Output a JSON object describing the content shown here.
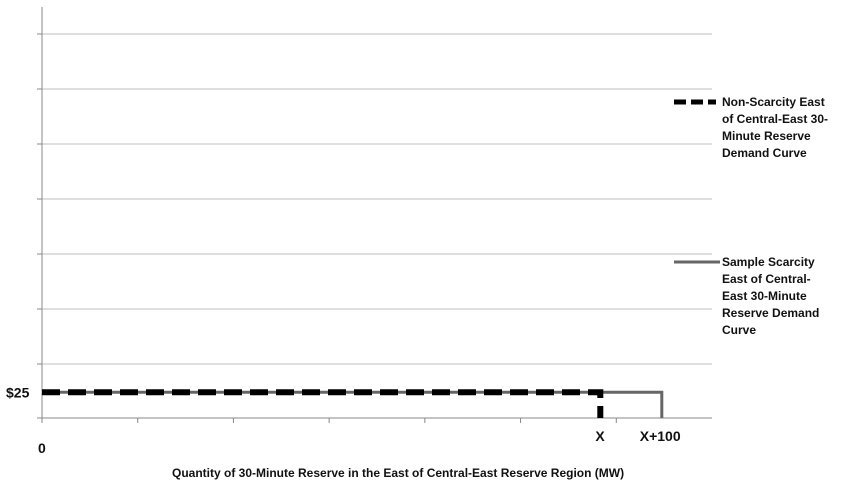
{
  "chart_data": {
    "type": "line",
    "title": "",
    "xlabel": "Quantity of 30-Minute Reserve in the East of Central-East Reserve Region (MW)",
    "ylabel": "",
    "x_tick_labels": [
      {
        "label": "0",
        "value": 0
      },
      {
        "label": "X",
        "value": 100
      },
      {
        "label": "X+100",
        "value": 111
      }
    ],
    "y_tick_labels": [
      {
        "label": "$25",
        "value": 25
      }
    ],
    "xlim": [
      0,
      120
    ],
    "ylim": [
      0,
      400
    ],
    "grid": true,
    "legend_position": "right",
    "series": [
      {
        "name": "Non-Scarcity East of Central-East 30-Minute Reserve Demand Curve",
        "style": "dashed",
        "color": "#000000",
        "points": [
          [
            0,
            25
          ],
          [
            100,
            25
          ],
          [
            100,
            0
          ]
        ]
      },
      {
        "name": "Sample Scarcity East of Central-East 30-Minute Reserve Demand Curve",
        "style": "solid",
        "color": "#666666",
        "points": [
          [
            0,
            25
          ],
          [
            111,
            25
          ],
          [
            111,
            0
          ]
        ]
      }
    ]
  },
  "legend": {
    "items": [
      {
        "lines": [
          "Non-Scarcity East",
          "of Central-East 30-",
          "Minute Reserve",
          "Demand Curve"
        ]
      },
      {
        "lines": [
          "Sample Scarcity",
          "East of Central-",
          "East 30-Minute",
          "Reserve Demand",
          "Curve"
        ]
      }
    ]
  },
  "colors": {
    "grid": "#bfbfbf",
    "axis": "#888888",
    "text": "#111111"
  }
}
